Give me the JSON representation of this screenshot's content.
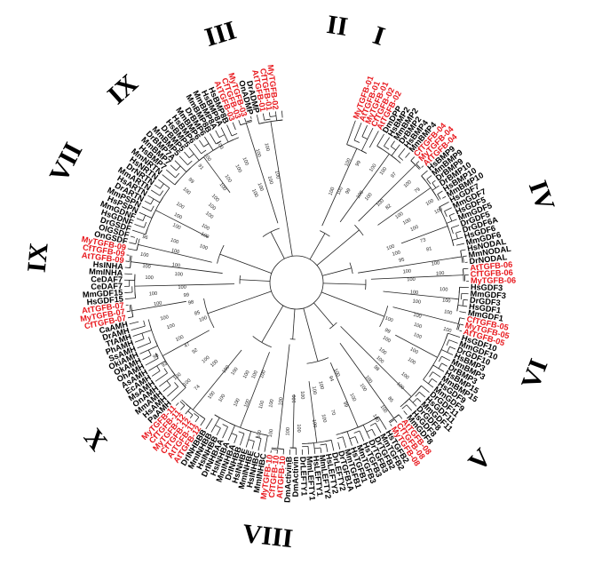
{
  "colors": {
    "highlight": "#e8191e",
    "default": "#000000",
    "branch": "#222222"
  },
  "clades": [
    {
      "numeral": "I",
      "angle": 18.5
    },
    {
      "numeral": "II",
      "angle": 9
    },
    {
      "numeral": "III",
      "angle": 343
    },
    {
      "numeral": "IV",
      "angle": 70.5
    },
    {
      "numeral": "VI",
      "angle": 111
    },
    {
      "numeral": "V",
      "angle": 134
    },
    {
      "numeral": "VIII",
      "angle": 186.5
    },
    {
      "numeral": "X",
      "angle": 232
    },
    {
      "numeral": "IX",
      "angle": 275.5
    },
    {
      "numeral": "VII",
      "angle": 297.5
    },
    {
      "numeral": "IX",
      "angle": 318
    }
  ],
  "leaves": [
    {
      "name": "MyTGFB-01",
      "red": true
    },
    {
      "name": "AtTGFB-01",
      "red": true
    },
    {
      "name": "MyTGFB-01",
      "red": true
    },
    {
      "name": "CfTGFB-02",
      "red": true
    },
    {
      "name": "AtTGFB-02",
      "red": true
    },
    {
      "name": "DmDPP",
      "red": false
    },
    {
      "name": "HsBMP2",
      "red": false
    },
    {
      "name": "MmBMP2",
      "red": false
    },
    {
      "name": "DrBMP2",
      "red": false
    },
    {
      "name": "HsBMP4",
      "red": false
    },
    {
      "name": "MmBMP4",
      "red": false
    },
    {
      "name": "CfTGFB-04",
      "red": true
    },
    {
      "name": "MyTGFB-04",
      "red": true
    },
    {
      "name": "AtTGFB-04",
      "red": true
    },
    {
      "name": "HsBMP9",
      "red": false
    },
    {
      "name": "MmBMP9",
      "red": false
    },
    {
      "name": "DrBMP9",
      "red": false
    },
    {
      "name": "DrBMP10",
      "red": false
    },
    {
      "name": "HsBMP10",
      "red": false
    },
    {
      "name": "MmBMP10",
      "red": false
    },
    {
      "name": "HsGDF7",
      "red": false
    },
    {
      "name": "MmGDF7",
      "red": false
    },
    {
      "name": "HsGDF5",
      "red": false
    },
    {
      "name": "MmGDF5",
      "red": false
    },
    {
      "name": "DrGDF5",
      "red": false
    },
    {
      "name": "DrGDF6A",
      "red": false
    },
    {
      "name": "HsGDF6",
      "red": false
    },
    {
      "name": "MmGDF6",
      "red": false
    },
    {
      "name": "HsNODAL",
      "red": false
    },
    {
      "name": "MmNODAL",
      "red": false
    },
    {
      "name": "DrNODAL",
      "red": false
    },
    {
      "name": "AtTGFB-06",
      "red": true
    },
    {
      "name": "CfTGFB-06",
      "red": true
    },
    {
      "name": "MyTGFB-06",
      "red": true
    },
    {
      "name": "HsGDF3",
      "red": false
    },
    {
      "name": "MmGDF3",
      "red": false
    },
    {
      "name": "DrGDF3",
      "red": false
    },
    {
      "name": "HsGDF1",
      "red": false
    },
    {
      "name": "MmGDF1",
      "red": false
    },
    {
      "name": "CfTGFB-05",
      "red": true
    },
    {
      "name": "MyTGFB-05",
      "red": true
    },
    {
      "name": "AtTGFB-05",
      "red": true
    },
    {
      "name": "HsGDF10",
      "red": false
    },
    {
      "name": "MmGDF10",
      "red": false
    },
    {
      "name": "DrGDF10",
      "red": false
    },
    {
      "name": "HsBMP3",
      "red": false
    },
    {
      "name": "MmBMP3",
      "red": false
    },
    {
      "name": "DrBMP3",
      "red": false
    },
    {
      "name": "HsBMP15",
      "red": false
    },
    {
      "name": "MmBMP15",
      "red": false
    },
    {
      "name": "HsGDF9",
      "red": false
    },
    {
      "name": "MmGDF9",
      "red": false
    },
    {
      "name": "DrGDF11",
      "red": false
    },
    {
      "name": "HsGDF11",
      "red": false
    },
    {
      "name": "MmGDF11",
      "red": false
    },
    {
      "name": "DrGDF8",
      "red": false
    },
    {
      "name": "HsGDF8",
      "red": false
    },
    {
      "name": "MmGDF8",
      "red": false
    },
    {
      "name": "AtTGFB-08",
      "red": true
    },
    {
      "name": "CfTGFB-08",
      "red": true
    },
    {
      "name": "MyTGFB-08",
      "red": true
    },
    {
      "name": "HsTGFB2",
      "red": false
    },
    {
      "name": "MmTGFB2",
      "red": false
    },
    {
      "name": "DrTGFB2",
      "red": false
    },
    {
      "name": "DrTGFB3",
      "red": false
    },
    {
      "name": "HsTGFB3",
      "red": false
    },
    {
      "name": "MmTGFB3",
      "red": false
    },
    {
      "name": "HsTGFB1",
      "red": false
    },
    {
      "name": "MmTGFB1",
      "red": false
    },
    {
      "name": "DrTGFB1A",
      "red": false
    },
    {
      "name": "DrLEFTY2",
      "red": false
    },
    {
      "name": "HsLEFTY2",
      "red": false
    },
    {
      "name": "MmLEFTY2",
      "red": false
    },
    {
      "name": "HsLEFTY1",
      "red": false
    },
    {
      "name": "MmLEFTY1",
      "red": false
    },
    {
      "name": "DrLEFTY1",
      "red": false
    },
    {
      "name": "DmActivin",
      "red": false
    },
    {
      "name": "DmActivinB",
      "red": false
    },
    {
      "name": "AtTGFB-10",
      "red": true
    },
    {
      "name": "CfTGFB-10",
      "red": true
    },
    {
      "name": "MyTGFB-10",
      "red": true
    },
    {
      "name": "MmINHBC",
      "red": false
    },
    {
      "name": "HsINHBC",
      "red": false
    },
    {
      "name": "MmINHBE",
      "red": false
    },
    {
      "name": "HsINHBE",
      "red": false
    },
    {
      "name": "DrINHBB",
      "red": false
    },
    {
      "name": "MmINHBA",
      "red": false
    },
    {
      "name": "HsINHBA",
      "red": false
    },
    {
      "name": "DrINHBAA",
      "red": false
    },
    {
      "name": "HsINHBB",
      "red": false
    },
    {
      "name": "MmINHBB",
      "red": false
    },
    {
      "name": "DrINHBBB",
      "red": false
    },
    {
      "name": "AtTGFB-12",
      "red": true
    },
    {
      "name": "AtTGFB-11",
      "red": true
    },
    {
      "name": "CfTGFB-12",
      "red": true
    },
    {
      "name": "MyTGFB-12",
      "red": true
    },
    {
      "name": "CfTGFB-11",
      "red": true
    },
    {
      "name": "MyTGFB-11",
      "red": true
    },
    {
      "name": "PaAMH",
      "red": false
    },
    {
      "name": "HsAMH",
      "red": false
    },
    {
      "name": "MmAMH",
      "red": false
    },
    {
      "name": "OnAMH",
      "red": false
    },
    {
      "name": "MsAMH",
      "red": false
    },
    {
      "name": "EcAMH",
      "red": false
    },
    {
      "name": "AsAMH",
      "red": false
    },
    {
      "name": "OhAMH",
      "red": false
    },
    {
      "name": "OkAMH",
      "red": false
    },
    {
      "name": "OkiAMH",
      "red": false
    },
    {
      "name": "SsAMH",
      "red": false
    },
    {
      "name": "PhAMH",
      "red": false
    },
    {
      "name": "TfAMH",
      "red": false
    },
    {
      "name": "DrAMH",
      "red": false
    },
    {
      "name": "CaAMH",
      "red": false
    },
    {
      "name": "CfTGFB-07",
      "red": true
    },
    {
      "name": "MyTGFB-07",
      "red": true
    },
    {
      "name": "AtTGFB-07",
      "red": true
    },
    {
      "name": "HsGDF15",
      "red": false
    },
    {
      "name": "MmGDF15",
      "red": false
    },
    {
      "name": "CeDAF7",
      "red": false
    },
    {
      "name": "CeDAF7",
      "red": false
    },
    {
      "name": "MmINHA",
      "red": false
    },
    {
      "name": "HsINHA",
      "red": false
    },
    {
      "name": "AtTGFB-09",
      "red": true
    },
    {
      "name": "CfTGFB-09",
      "red": true
    },
    {
      "name": "MyTGFB-09",
      "red": true
    },
    {
      "name": "OnGSDF",
      "red": false
    },
    {
      "name": "OlGSDF",
      "red": false
    },
    {
      "name": "DrGSDF",
      "red": false
    },
    {
      "name": "HsGDNF",
      "red": false
    },
    {
      "name": "MmGDNF",
      "red": false
    },
    {
      "name": "HsPSPN",
      "red": false
    },
    {
      "name": "MmPSPN",
      "red": false
    },
    {
      "name": "DrARTN",
      "red": false
    },
    {
      "name": "HsARTN",
      "red": false
    },
    {
      "name": "MmARTN",
      "red": false
    },
    {
      "name": "DrNRTN",
      "red": false
    },
    {
      "name": "HsNRTN",
      "red": false
    },
    {
      "name": "MmNRTN",
      "red": false
    },
    {
      "name": "HsBMP7",
      "red": false
    },
    {
      "name": "MmBMP7",
      "red": false
    },
    {
      "name": "DrBMP7A",
      "red": false
    },
    {
      "name": "MmBMP5",
      "red": false
    },
    {
      "name": "DrBMP5",
      "red": false
    },
    {
      "name": "HsBMP5",
      "red": false
    },
    {
      "name": "HsBMP6",
      "red": false
    },
    {
      "name": "MmBMP6",
      "red": false
    },
    {
      "name": "DrBMP6",
      "red": false
    },
    {
      "name": "MmBMP8B",
      "red": false
    },
    {
      "name": "MmBMP8A",
      "red": false
    },
    {
      "name": "HsBMP8A",
      "red": false
    },
    {
      "name": "HsBMP8B",
      "red": false
    },
    {
      "name": "AtTGFB-03",
      "red": true
    },
    {
      "name": "CfTGFB-03",
      "red": true
    },
    {
      "name": "MyTGFB-03",
      "red": true
    },
    {
      "name": "OnADMP",
      "red": false
    },
    {
      "name": "DrADMP",
      "red": false
    },
    {
      "name": "AtTGFB-01",
      "red": true
    },
    {
      "name": "CfTGFB-01",
      "red": true
    },
    {
      "name": "MyTGFB-02",
      "red": true
    }
  ],
  "bootstrap": [
    "100",
    "100",
    "100",
    "99",
    "99",
    "100",
    "100",
    "100",
    "100",
    "97",
    "100",
    "100",
    "82",
    "79",
    "100",
    "100",
    "100",
    "100",
    "100",
    "100",
    "73",
    "100",
    "81",
    "95",
    "100",
    "100",
    "100",
    "100",
    "100",
    "100",
    "100",
    "100",
    "100",
    "100",
    "100",
    "100",
    "100",
    "100",
    "99",
    "100",
    "100",
    "100",
    "100",
    "100",
    "100",
    "100",
    "98",
    "85",
    "100",
    "100",
    "100",
    "100",
    "100",
    "100",
    "99",
    "94",
    "70",
    "100",
    "100",
    "100",
    "100",
    "100",
    "100",
    "100",
    "100",
    "100",
    "100",
    "100",
    "100",
    "100",
    "100",
    "100",
    "100",
    "100",
    "100",
    "100",
    "100",
    "100",
    "100",
    "74",
    "100",
    "100",
    "100",
    "100",
    "92",
    "93",
    "47",
    "98",
    "100",
    "100",
    "100",
    "85",
    "100",
    "98",
    "100",
    "99",
    "100",
    "100",
    "100",
    "100",
    "100",
    "100",
    "100",
    "100",
    "96",
    "100",
    "100",
    "100",
    "100",
    "100",
    "100",
    "100",
    "100",
    "100",
    "100",
    "99",
    "100",
    "91",
    "100",
    "100",
    "100",
    "100",
    "100",
    "100",
    "100",
    "100",
    "100",
    "100",
    "100",
    "100"
  ]
}
